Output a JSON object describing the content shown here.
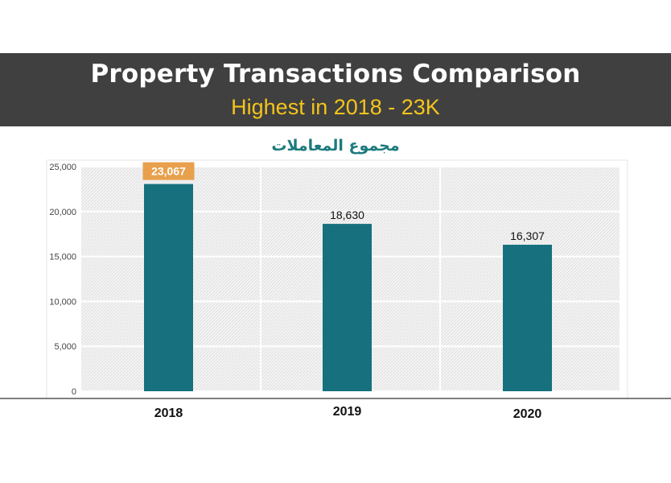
{
  "header": {
    "title": "Property Transactions Comparison",
    "subtitle": "Highest in 2018 - 23K"
  },
  "colors": {
    "banner": "#404040",
    "subtitle": "#f5c41b",
    "bar": "#16707d",
    "highlight_label_bg": "#e8a04c",
    "arabic_title": "#1c7a7d"
  },
  "chart_data": {
    "type": "bar",
    "title": "مجموع المعاملات",
    "categories": [
      "2018",
      "2019",
      "2020"
    ],
    "values": [
      23067,
      18630,
      16307
    ],
    "value_labels": [
      "23,067",
      "18,630",
      "16,307"
    ],
    "highlight_index": 0,
    "ylim": [
      0,
      25000
    ],
    "y_ticks": [
      0,
      5000,
      10000,
      15000,
      20000,
      25000
    ],
    "y_tick_labels": [
      "0",
      "5,000",
      "10,000",
      "15,000",
      "20,000",
      "25,000"
    ],
    "grid": true,
    "xlabel": "",
    "ylabel": ""
  }
}
